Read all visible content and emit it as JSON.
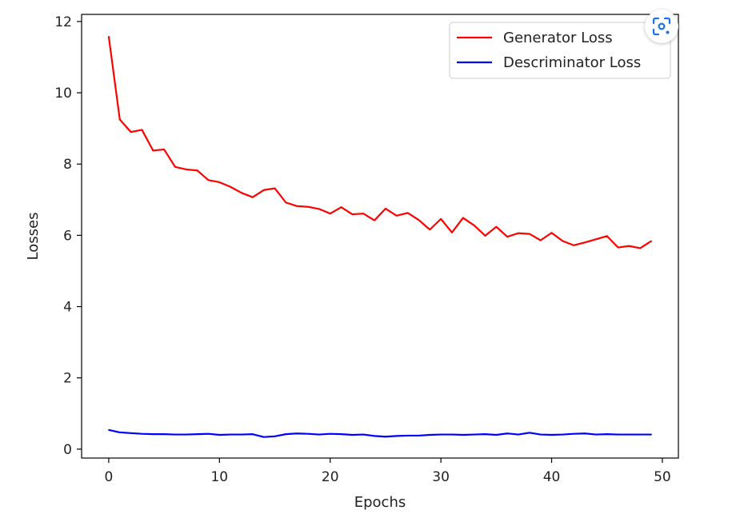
{
  "chart_data": {
    "type": "line",
    "title": "",
    "xlabel": "Epochs",
    "ylabel": "Losses",
    "xlim": [
      -2.45,
      51.45
    ],
    "ylim": [
      -0.25,
      12.2
    ],
    "xticks": [
      0,
      10,
      20,
      30,
      40,
      50
    ],
    "yticks": [
      0,
      2,
      4,
      6,
      8,
      10,
      12
    ],
    "grid": false,
    "legend_position": "top-right",
    "x": [
      0,
      1,
      2,
      3,
      4,
      5,
      6,
      7,
      8,
      9,
      10,
      11,
      12,
      13,
      14,
      15,
      16,
      17,
      18,
      19,
      20,
      21,
      22,
      23,
      24,
      25,
      26,
      27,
      28,
      29,
      30,
      31,
      32,
      33,
      34,
      35,
      36,
      37,
      38,
      39,
      40,
      41,
      42,
      43,
      44,
      45,
      46,
      47,
      48,
      49
    ],
    "series": [
      {
        "name": "Generator Loss",
        "color": "#ff0000",
        "values": [
          11.58,
          9.25,
          8.9,
          8.96,
          8.38,
          8.41,
          7.92,
          7.85,
          7.82,
          7.55,
          7.49,
          7.36,
          7.19,
          7.07,
          7.27,
          7.32,
          6.92,
          6.82,
          6.8,
          6.74,
          6.61,
          6.79,
          6.59,
          6.61,
          6.42,
          6.75,
          6.55,
          6.63,
          6.43,
          6.16,
          6.46,
          6.08,
          6.49,
          6.28,
          5.99,
          6.24,
          5.96,
          6.06,
          6.04,
          5.86,
          6.07,
          5.84,
          5.72,
          5.8,
          5.89,
          5.98,
          5.66,
          5.7,
          5.64,
          5.84
        ]
      },
      {
        "name": "Descriminator Loss",
        "color": "#0000ff",
        "values": [
          0.54,
          0.47,
          0.45,
          0.43,
          0.42,
          0.42,
          0.41,
          0.41,
          0.42,
          0.43,
          0.4,
          0.41,
          0.41,
          0.42,
          0.34,
          0.36,
          0.42,
          0.44,
          0.43,
          0.41,
          0.43,
          0.42,
          0.4,
          0.41,
          0.37,
          0.35,
          0.37,
          0.38,
          0.38,
          0.4,
          0.41,
          0.41,
          0.4,
          0.41,
          0.42,
          0.4,
          0.44,
          0.41,
          0.46,
          0.41,
          0.4,
          0.41,
          0.43,
          0.44,
          0.41,
          0.42,
          0.41,
          0.41,
          0.41,
          0.41
        ]
      }
    ]
  },
  "ui": {
    "lens_icon": "lens-search-icon",
    "accent": "#1a73e8"
  }
}
